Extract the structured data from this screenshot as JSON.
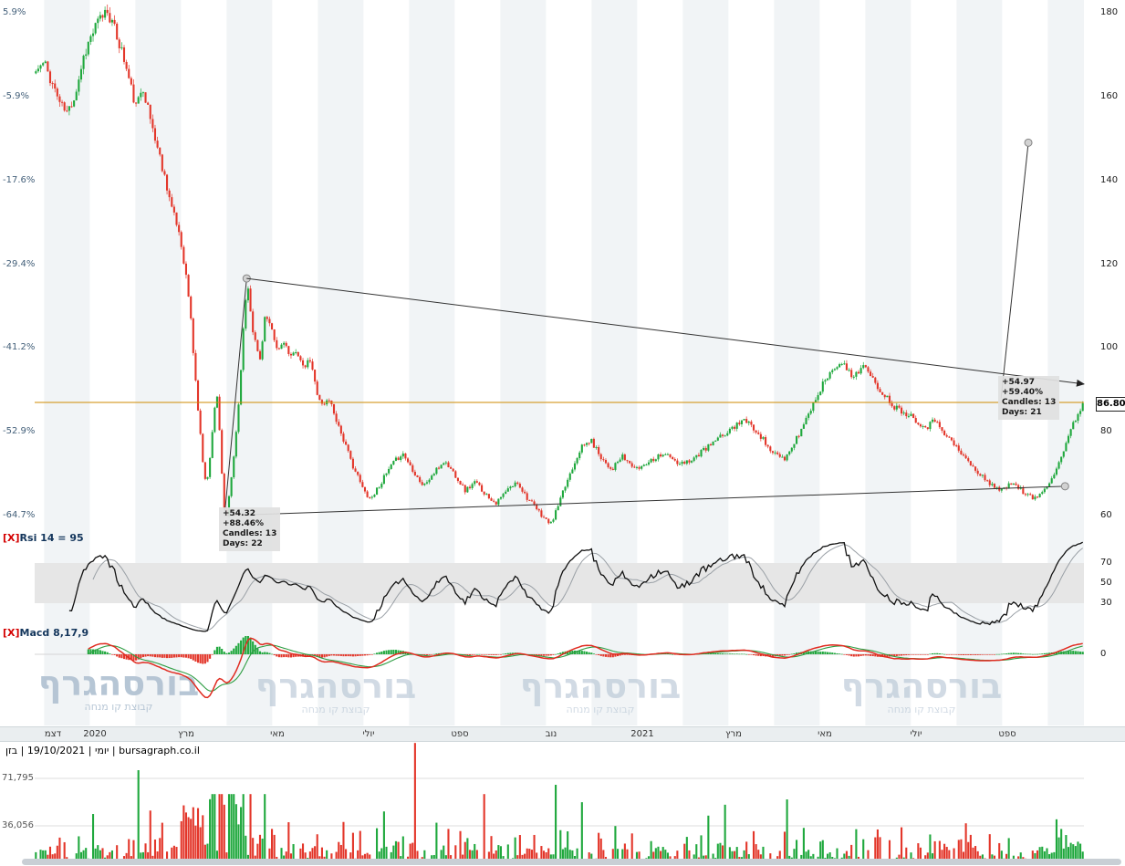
{
  "infobar": {
    "text": "יומי | 19/10/2021 | בזן | bursagraph.co.il"
  },
  "watermark": {
    "text": "בורסהגרף",
    "subtitle": "קבוצת קו מנחה"
  },
  "panes": {
    "rsi": {
      "close": "[X]",
      "title": "Rsi 14 = 95"
    },
    "macd": {
      "close": "[X]",
      "title": "Macd 8,17,9"
    }
  },
  "price_axis": {
    "last_label": "86.80"
  },
  "chart_data": {
    "type": "candlestick",
    "title": "בזן daily candlestick chart with RSI, MACD and volume",
    "timeframe_label": "יומי",
    "date_label": "19/10/2021",
    "symbol_label": "בזן",
    "source_label": "bursagraph.co.il",
    "last_price": 86.8,
    "candle_count": 440,
    "noise_seed": 11,
    "horizontal_line_price": 87.0,
    "colors": {
      "up": "#1fa83d",
      "down": "#e3362a",
      "orange_line": "#cf8a00",
      "rsi": "#111111",
      "rsi_signal": "#9aa0a6",
      "macd": "#e02b20",
      "macd_signal": "#2f9e44",
      "watermark": "#b3c3d3",
      "stripe": "#f1f4f6"
    },
    "price_ticks": [
      {
        "price": 180,
        "pct": "5.9%"
      },
      {
        "price": 160,
        "pct": "-5.9%"
      },
      {
        "price": 140,
        "pct": "-17.6%"
      },
      {
        "price": 120,
        "pct": "-29.4%"
      },
      {
        "price": 100,
        "pct": "-41.2%"
      },
      {
        "price": 80,
        "pct": "-52.9%"
      },
      {
        "price": 60,
        "pct": "-64.7%"
      }
    ],
    "x_ticks": [
      {
        "f": 0.012,
        "label": "דצמ"
      },
      {
        "f": 0.052,
        "label": "2020"
      },
      {
        "f": 0.139,
        "label": "מרץ"
      },
      {
        "f": 0.226,
        "label": "מאי"
      },
      {
        "f": 0.313,
        "label": "יולי"
      },
      {
        "f": 0.4,
        "label": "ספט"
      },
      {
        "f": 0.487,
        "label": "נוב"
      },
      {
        "f": 0.574,
        "label": "2021"
      },
      {
        "f": 0.661,
        "label": "מרץ"
      },
      {
        "f": 0.748,
        "label": "מאי"
      },
      {
        "f": 0.835,
        "label": "יולי"
      },
      {
        "f": 0.922,
        "label": "ספט"
      }
    ],
    "price_keyframes": [
      [
        0,
        166
      ],
      [
        0.008,
        168
      ],
      [
        0.016,
        163
      ],
      [
        0.024,
        158
      ],
      [
        0.03,
        156
      ],
      [
        0.038,
        161
      ],
      [
        0.046,
        170
      ],
      [
        0.052,
        174
      ],
      [
        0.06,
        178
      ],
      [
        0.068,
        181
      ],
      [
        0.075,
        176
      ],
      [
        0.082,
        171
      ],
      [
        0.09,
        163
      ],
      [
        0.096,
        157
      ],
      [
        0.102,
        163
      ],
      [
        0.108,
        156
      ],
      [
        0.114,
        150
      ],
      [
        0.12,
        144
      ],
      [
        0.126,
        138
      ],
      [
        0.131,
        132
      ],
      [
        0.1365,
        128
      ],
      [
        0.142,
        120
      ],
      [
        0.147,
        110
      ],
      [
        0.151,
        97
      ],
      [
        0.155,
        85
      ],
      [
        0.159,
        74
      ],
      [
        0.163,
        67
      ],
      [
        0.1665,
        74
      ],
      [
        0.17,
        85
      ],
      [
        0.1735,
        89
      ],
      [
        0.177,
        72
      ],
      [
        0.1795,
        63
      ],
      [
        0.181,
        58
      ],
      [
        0.185,
        65
      ],
      [
        0.189,
        74
      ],
      [
        0.1935,
        86
      ],
      [
        0.197,
        100
      ],
      [
        0.2,
        110
      ],
      [
        0.2017,
        116.6
      ],
      [
        0.208,
        103
      ],
      [
        0.214,
        97
      ],
      [
        0.219,
        108
      ],
      [
        0.225,
        104
      ],
      [
        0.231,
        99
      ],
      [
        0.237,
        102
      ],
      [
        0.243,
        97
      ],
      [
        0.249,
        100
      ],
      [
        0.255,
        95
      ],
      [
        0.262,
        97
      ],
      [
        0.268,
        90
      ],
      [
        0.274,
        86
      ],
      [
        0.28,
        88
      ],
      [
        0.287,
        83
      ],
      [
        0.294,
        78
      ],
      [
        0.301,
        73
      ],
      [
        0.308,
        69
      ],
      [
        0.313,
        66
      ],
      [
        0.32,
        64
      ],
      [
        0.33,
        68
      ],
      [
        0.34,
        72
      ],
      [
        0.35,
        75
      ],
      [
        0.36,
        71
      ],
      [
        0.37,
        67
      ],
      [
        0.38,
        70
      ],
      [
        0.39,
        73
      ],
      [
        0.4,
        70
      ],
      [
        0.41,
        66
      ],
      [
        0.42,
        68
      ],
      [
        0.43,
        65
      ],
      [
        0.44,
        63
      ],
      [
        0.45,
        66
      ],
      [
        0.46,
        68
      ],
      [
        0.47,
        64
      ],
      [
        0.48,
        61
      ],
      [
        0.487,
        59
      ],
      [
        0.492,
        58
      ],
      [
        0.5,
        63
      ],
      [
        0.51,
        70
      ],
      [
        0.52,
        76
      ],
      [
        0.53,
        78
      ],
      [
        0.54,
        74
      ],
      [
        0.55,
        71
      ],
      [
        0.56,
        74
      ],
      [
        0.574,
        71
      ],
      [
        0.585,
        73
      ],
      [
        0.6,
        75
      ],
      [
        0.615,
        72
      ],
      [
        0.63,
        74
      ],
      [
        0.645,
        77
      ],
      [
        0.661,
        80
      ],
      [
        0.675,
        83
      ],
      [
        0.69,
        80
      ],
      [
        0.7,
        76
      ],
      [
        0.715,
        73
      ],
      [
        0.73,
        80
      ],
      [
        0.745,
        88
      ],
      [
        0.755,
        93
      ],
      [
        0.768,
        97
      ],
      [
        0.78,
        93
      ],
      [
        0.79,
        96
      ],
      [
        0.8,
        92
      ],
      [
        0.81,
        89
      ],
      [
        0.82,
        86
      ],
      [
        0.835,
        84
      ],
      [
        0.85,
        81
      ],
      [
        0.86,
        83
      ],
      [
        0.87,
        79
      ],
      [
        0.88,
        76
      ],
      [
        0.89,
        73
      ],
      [
        0.9,
        70
      ],
      [
        0.91,
        68
      ],
      [
        0.922,
        66
      ],
      [
        0.935,
        68
      ],
      [
        0.945,
        65
      ],
      [
        0.955,
        64
      ],
      [
        0.962,
        66
      ],
      [
        0.97,
        69
      ],
      [
        0.978,
        73
      ],
      [
        0.985,
        78
      ],
      [
        0.993,
        83
      ],
      [
        1,
        86.8
      ]
    ],
    "rsi": {
      "period": 14,
      "signal_period": 10,
      "ticks": [
        70,
        50,
        30
      ],
      "band": [
        30,
        70
      ],
      "last_value": 95
    },
    "macd": {
      "fast": 8,
      "slow": 17,
      "signal": 9,
      "ticks": [
        0
      ]
    },
    "volume": {
      "ticks": [
        {
          "value": 71795,
          "label": "71,795"
        },
        {
          "value": 36056,
          "label": "36,056"
        }
      ],
      "spikes": [
        {
          "f": 0.054,
          "v": 45000
        },
        {
          "f": 0.097,
          "v": 78000
        },
        {
          "f": 0.179,
          "v": 52000
        },
        {
          "f": 0.362,
          "v": 98500
        },
        {
          "f": 0.428,
          "v": 60000
        },
        {
          "f": 0.497,
          "v": 67000
        },
        {
          "f": 0.658,
          "v": 52000
        },
        {
          "f": 0.717,
          "v": 56000
        },
        {
          "f": 0.889,
          "v": 38000
        },
        {
          "f": 0.976,
          "v": 41000
        }
      ]
    },
    "measures": [
      {
        "lines": [
          "+54.32",
          "+88.46%",
          "Candles: 13",
          "Days: 22"
        ]
      },
      {
        "lines": [
          "+54.97",
          "+59.40%",
          "Candles: 13",
          "Days: 21"
        ]
      }
    ],
    "trendlines": [
      {
        "x1": 0.181,
        "p1": 60.0,
        "x2": 0.202,
        "p2": 116.6,
        "end": "circle",
        "name": "measure-1-line"
      },
      {
        "x1": 0.202,
        "p1": 116.6,
        "x2": 1.0,
        "p2": 91.4,
        "end": "arrow",
        "name": "descending-trendline"
      },
      {
        "x1": 0.181,
        "p1": 60.0,
        "x2": 0.982,
        "p2": 67.0,
        "end": "circle",
        "name": "ascending-trendline"
      },
      {
        "x1": 0.921,
        "p1": 88.0,
        "x2": 0.947,
        "p2": 149.0,
        "end": "circle",
        "name": "projection-line"
      }
    ]
  }
}
